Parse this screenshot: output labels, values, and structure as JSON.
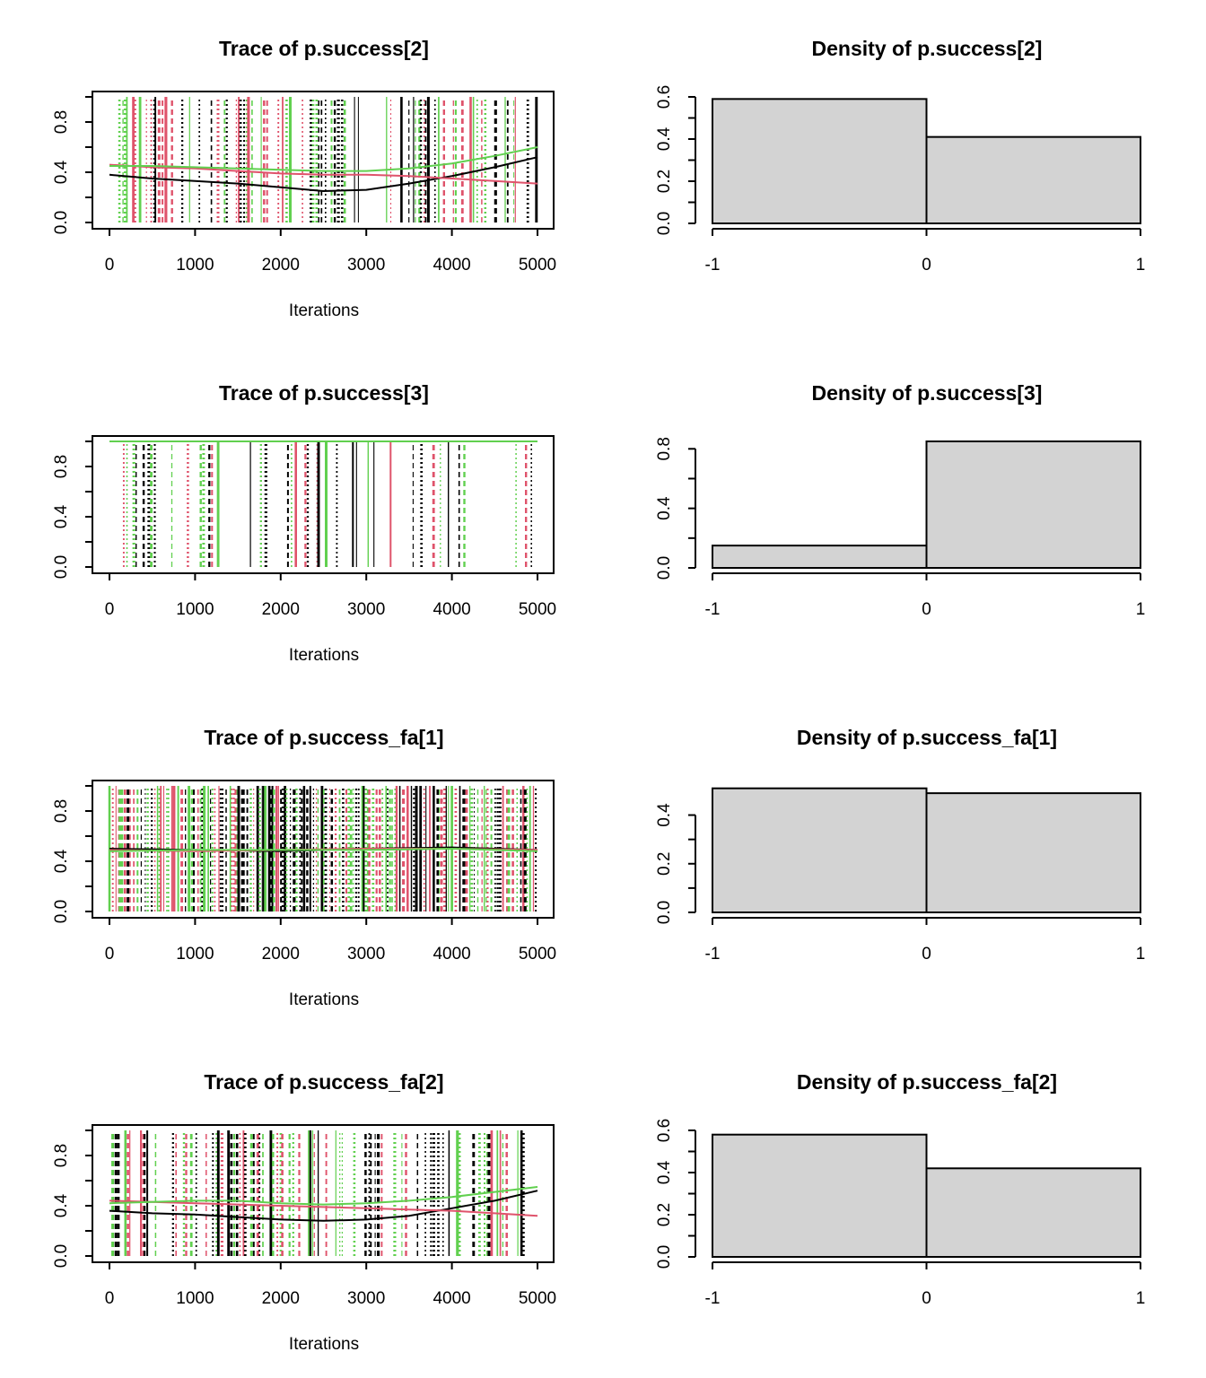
{
  "chart_data": [
    {
      "type": "line",
      "title": "Trace of p.success[2]",
      "xlabel": "Iterations",
      "ylabel": "",
      "xlim": [
        0,
        5000
      ],
      "ylim": [
        0,
        1
      ],
      "xticks": [
        "0",
        "1000",
        "2000",
        "3000",
        "4000",
        "5000"
      ],
      "yticks": [
        "0.0",
        "0.4",
        "0.8"
      ],
      "series_colors": [
        "#000000",
        "#DF536B",
        "#61D04F"
      ],
      "trace_density": 0.5,
      "smooth_lines": [
        {
          "color": "#000000",
          "x": [
            0,
            500,
            1000,
            1500,
            2000,
            2500,
            3000,
            3500,
            4000,
            4500,
            5000
          ],
          "y": [
            0.38,
            0.35,
            0.33,
            0.31,
            0.28,
            0.25,
            0.26,
            0.31,
            0.37,
            0.44,
            0.52
          ]
        },
        {
          "color": "#DF536B",
          "x": [
            0,
            500,
            1000,
            1500,
            2000,
            2500,
            3000,
            3500,
            4000,
            4500,
            5000
          ],
          "y": [
            0.46,
            0.44,
            0.43,
            0.41,
            0.39,
            0.38,
            0.38,
            0.37,
            0.35,
            0.33,
            0.31
          ]
        },
        {
          "color": "#61D04F",
          "x": [
            0,
            500,
            1000,
            1500,
            2000,
            2500,
            3000,
            3500,
            4000,
            4500,
            5000
          ],
          "y": [
            0.45,
            0.45,
            0.44,
            0.43,
            0.42,
            0.41,
            0.41,
            0.43,
            0.47,
            0.53,
            0.6
          ]
        }
      ]
    },
    {
      "type": "bar",
      "title": "Density of p.success[2]",
      "xlim": [
        -1,
        1
      ],
      "ylim": [
        0,
        0.6
      ],
      "xticks": [
        "-1",
        "0",
        "1"
      ],
      "yticks": [
        "0.0",
        "0.2",
        "0.4",
        "0.6"
      ],
      "bins": [
        {
          "from": -1,
          "to": 0,
          "value": 0.59
        },
        {
          "from": 0,
          "to": 1,
          "value": 0.41
        }
      ]
    },
    {
      "type": "line",
      "title": "Trace of p.success[3]",
      "xlabel": "Iterations",
      "ylabel": "",
      "xlim": [
        0,
        5000
      ],
      "ylim": [
        0,
        1
      ],
      "xticks": [
        "0",
        "1000",
        "2000",
        "3000",
        "4000",
        "5000"
      ],
      "yticks": [
        "0.0",
        "0.4",
        "0.8"
      ],
      "series_colors": [
        "#000000",
        "#DF536B",
        "#61D04F"
      ],
      "trace_density": 0.28,
      "smooth_lines": [
        {
          "color": "#61D04F",
          "x": [
            0,
            5000
          ],
          "y": [
            1.0,
            1.0
          ]
        }
      ]
    },
    {
      "type": "bar",
      "title": "Density of p.success[3]",
      "xlim": [
        -1,
        1
      ],
      "ylim": [
        0,
        0.85
      ],
      "xticks": [
        "-1",
        "0",
        "1"
      ],
      "yticks": [
        "0.0",
        "0.4",
        "0.8"
      ],
      "bins": [
        {
          "from": -1,
          "to": 0,
          "value": 0.15
        },
        {
          "from": 0,
          "to": 1,
          "value": 0.85
        }
      ]
    },
    {
      "type": "line",
      "title": "Trace of p.success_fa[1]",
      "xlabel": "Iterations",
      "ylabel": "",
      "xlim": [
        0,
        5000
      ],
      "ylim": [
        0,
        1
      ],
      "xticks": [
        "0",
        "1000",
        "2000",
        "3000",
        "4000",
        "5000"
      ],
      "yticks": [
        "0.0",
        "0.4",
        "0.8"
      ],
      "series_colors": [
        "#000000",
        "#DF536B",
        "#61D04F"
      ],
      "trace_density": 1.0,
      "smooth_lines": [
        {
          "color": "#000000",
          "x": [
            0,
            1000,
            2000,
            3000,
            4000,
            5000
          ],
          "y": [
            0.5,
            0.49,
            0.48,
            0.5,
            0.51,
            0.49
          ]
        },
        {
          "color": "#DF536B",
          "x": [
            0,
            1000,
            2000,
            3000,
            4000,
            5000
          ],
          "y": [
            0.49,
            0.48,
            0.49,
            0.5,
            0.5,
            0.49
          ]
        },
        {
          "color": "#61D04F",
          "x": [
            0,
            1000,
            2000,
            3000,
            4000,
            5000
          ],
          "y": [
            0.48,
            0.49,
            0.49,
            0.49,
            0.5,
            0.48
          ]
        }
      ]
    },
    {
      "type": "bar",
      "title": "Density of p.success_fa[1]",
      "xlim": [
        -1,
        1
      ],
      "ylim": [
        0,
        0.52
      ],
      "xticks": [
        "-1",
        "0",
        "1"
      ],
      "yticks": [
        "0.0",
        "0.2",
        "0.4"
      ],
      "bins": [
        {
          "from": -1,
          "to": 0,
          "value": 0.51
        },
        {
          "from": 0,
          "to": 1,
          "value": 0.49
        }
      ]
    },
    {
      "type": "line",
      "title": "Trace of p.success_fa[2]",
      "xlabel": "Iterations",
      "ylabel": "",
      "xlim": [
        0,
        5000
      ],
      "ylim": [
        0,
        1
      ],
      "xticks": [
        "0",
        "1000",
        "2000",
        "3000",
        "4000",
        "5000"
      ],
      "yticks": [
        "0.0",
        "0.4",
        "0.8"
      ],
      "series_colors": [
        "#000000",
        "#DF536B",
        "#61D04F"
      ],
      "trace_density": 0.55,
      "smooth_lines": [
        {
          "color": "#000000",
          "x": [
            0,
            500,
            1000,
            1500,
            2000,
            2500,
            3000,
            3500,
            4000,
            4500,
            5000
          ],
          "y": [
            0.36,
            0.34,
            0.33,
            0.31,
            0.29,
            0.28,
            0.29,
            0.32,
            0.38,
            0.44,
            0.52
          ]
        },
        {
          "color": "#DF536B",
          "x": [
            0,
            500,
            1000,
            1500,
            2000,
            2500,
            3000,
            3500,
            4000,
            4500,
            5000
          ],
          "y": [
            0.44,
            0.43,
            0.42,
            0.41,
            0.4,
            0.39,
            0.38,
            0.37,
            0.36,
            0.34,
            0.32
          ]
        },
        {
          "color": "#61D04F",
          "x": [
            0,
            500,
            1000,
            1500,
            2000,
            2500,
            3000,
            3500,
            4000,
            4500,
            5000
          ],
          "y": [
            0.42,
            0.43,
            0.44,
            0.44,
            0.42,
            0.41,
            0.42,
            0.44,
            0.47,
            0.51,
            0.55
          ]
        }
      ]
    },
    {
      "type": "bar",
      "title": "Density of p.success_fa[2]",
      "xlim": [
        -1,
        1
      ],
      "ylim": [
        0,
        0.6
      ],
      "xticks": [
        "-1",
        "0",
        "1"
      ],
      "yticks": [
        "0.0",
        "0.2",
        "0.4",
        "0.6"
      ],
      "bins": [
        {
          "from": -1,
          "to": 0,
          "value": 0.58
        },
        {
          "from": 0,
          "to": 1,
          "value": 0.42
        }
      ]
    }
  ]
}
